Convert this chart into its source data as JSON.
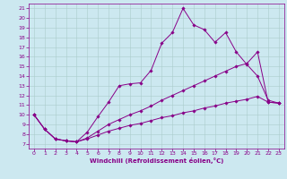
{
  "xlabel": "Windchill (Refroidissement éolien,°C)",
  "bg_color": "#cce8f0",
  "line_color": "#880088",
  "grid_color": "#aacccc",
  "xlim": [
    -0.5,
    23.5
  ],
  "ylim": [
    6.5,
    21.5
  ],
  "xticks": [
    0,
    1,
    2,
    3,
    4,
    5,
    6,
    7,
    8,
    9,
    10,
    11,
    12,
    13,
    14,
    15,
    16,
    17,
    18,
    19,
    20,
    21,
    22,
    23
  ],
  "yticks": [
    7,
    8,
    9,
    10,
    11,
    12,
    13,
    14,
    15,
    16,
    17,
    18,
    19,
    20,
    21
  ],
  "line1_x": [
    0,
    1,
    2,
    3,
    4,
    5,
    6,
    7,
    8,
    9,
    10,
    11,
    12,
    13,
    14,
    15,
    16,
    17,
    18,
    19,
    20,
    21,
    22,
    23
  ],
  "line1_y": [
    10.0,
    8.5,
    7.5,
    7.3,
    7.2,
    8.2,
    9.8,
    11.3,
    13.0,
    13.2,
    13.3,
    14.6,
    17.4,
    18.5,
    21.0,
    19.3,
    18.8,
    17.5,
    18.5,
    16.5,
    15.2,
    14.0,
    11.5,
    11.2
  ],
  "line2_x": [
    0,
    1,
    2,
    3,
    4,
    5,
    6,
    7,
    8,
    9,
    10,
    11,
    12,
    13,
    14,
    15,
    16,
    17,
    18,
    19,
    20,
    21,
    22,
    23
  ],
  "line2_y": [
    10.0,
    8.5,
    7.5,
    7.3,
    7.2,
    7.6,
    8.3,
    9.0,
    9.5,
    10.0,
    10.4,
    10.9,
    11.5,
    12.0,
    12.5,
    13.0,
    13.5,
    14.0,
    14.5,
    15.0,
    15.3,
    16.5,
    11.3,
    11.2
  ],
  "line3_x": [
    0,
    1,
    2,
    3,
    4,
    5,
    6,
    7,
    8,
    9,
    10,
    11,
    12,
    13,
    14,
    15,
    16,
    17,
    18,
    19,
    20,
    21,
    22,
    23
  ],
  "line3_y": [
    10.0,
    8.5,
    7.5,
    7.3,
    7.2,
    7.5,
    7.9,
    8.3,
    8.6,
    8.9,
    9.1,
    9.4,
    9.7,
    9.9,
    10.2,
    10.4,
    10.7,
    10.9,
    11.2,
    11.4,
    11.6,
    11.9,
    11.3,
    11.2
  ],
  "tick_fontsize": 4.5,
  "xlabel_fontsize": 5.0
}
